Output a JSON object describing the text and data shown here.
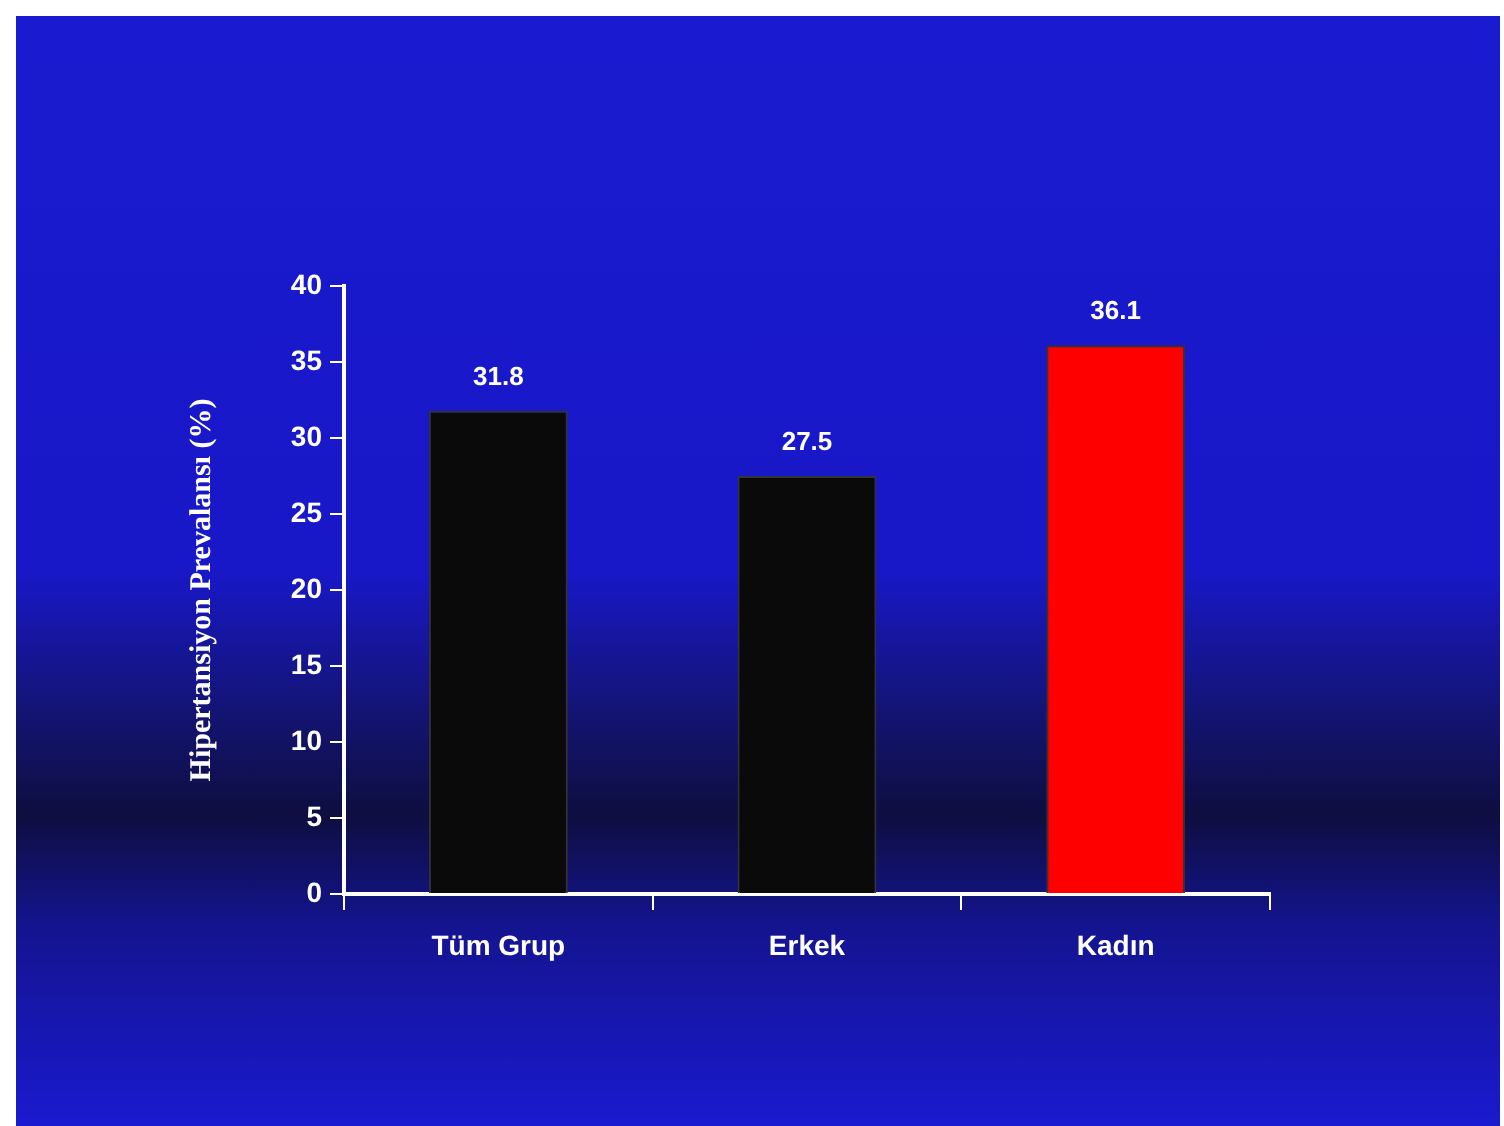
{
  "chart_data": {
    "type": "bar",
    "ylabel": "Hipertansiyon Prevalansı (%)",
    "categories": [
      "Tüm Grup",
      "Erkek",
      "Kadın"
    ],
    "values": [
      31.8,
      27.5,
      36.1
    ],
    "colors": [
      "#0a0a0a",
      "#0a0a0a",
      "#ff0000"
    ],
    "ylim": [
      0,
      40
    ],
    "yticks": [
      0,
      5,
      10,
      15,
      20,
      25,
      30,
      35,
      40
    ],
    "grid": false,
    "data_labels": true
  }
}
